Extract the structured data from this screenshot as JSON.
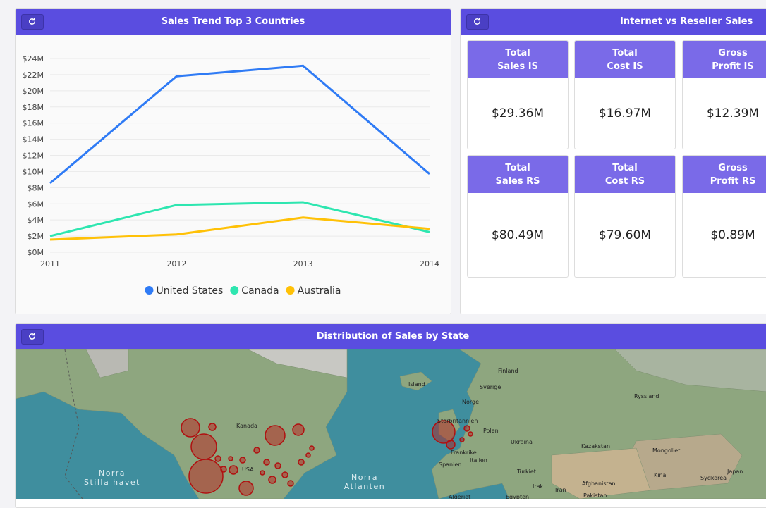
{
  "chart_data": {
    "type": "line",
    "title": "Sales Trend Top 3 Countries",
    "categories": [
      "2011",
      "2012",
      "2013",
      "2014"
    ],
    "series": [
      {
        "name": "United States",
        "color": "#2f7bf5",
        "values": [
          8550000,
          21800000,
          23100000,
          9700000
        ]
      },
      {
        "name": "Canada",
        "color": "#2ee6b0",
        "values": [
          2000000,
          5850000,
          6200000,
          2500000
        ]
      },
      {
        "name": "Australia",
        "color": "#ffc107",
        "values": [
          1570000,
          2200000,
          4300000,
          2900000
        ]
      }
    ],
    "ylim": [
      0,
      24000000
    ],
    "yticks": [
      {
        "value": 0,
        "label": "$0M"
      },
      {
        "value": 2000000,
        "label": "$2M"
      },
      {
        "value": 4000000,
        "label": "$4M"
      },
      {
        "value": 6000000,
        "label": "$6M"
      },
      {
        "value": 8000000,
        "label": "$8M"
      },
      {
        "value": 10000000,
        "label": "$10M"
      },
      {
        "value": 12000000,
        "label": "$12M"
      },
      {
        "value": 14000000,
        "label": "$14M"
      },
      {
        "value": 16000000,
        "label": "$16M"
      },
      {
        "value": 18000000,
        "label": "$18M"
      },
      {
        "value": 20000000,
        "label": "$20M"
      },
      {
        "value": 22000000,
        "label": "$22M"
      },
      {
        "value": 24000000,
        "label": "$24M"
      }
    ],
    "grid": true,
    "legend": "bottom"
  },
  "kpi_panel": {
    "title": "Internet vs Reseller Sales",
    "cards": [
      {
        "label": "Total\nSales IS",
        "value": "$29.36M"
      },
      {
        "label": "Total\nCost IS",
        "value": "$16.97M"
      },
      {
        "label": "Gross\nProfit IS",
        "value": "$12.39M"
      },
      {
        "label": "Total\nSales RS",
        "value": "$80.49M"
      },
      {
        "label": "Total\nCost RS",
        "value": "$79.60M"
      },
      {
        "label": "Gross\nProfit RS",
        "value": "$0.89M"
      }
    ]
  },
  "map_panel": {
    "title": "Distribution of Sales by State",
    "labels": [
      "Finland",
      "Island",
      "Sverige",
      "Norge",
      "Ryssland",
      "Storbritannien",
      "Polen",
      "Ukraina",
      "Kazakstan",
      "Mongoliet",
      "Frankrike",
      "Italien",
      "Spanien",
      "Turkiet",
      "Irak",
      "Iran",
      "Afghanistan",
      "Pakistan",
      "Kina",
      "Japan",
      "Sydkorea",
      "Algeriet",
      "Egypten",
      "Kanada",
      "USA",
      "Norra",
      "Stilla havet",
      "Norra",
      "Atlanten"
    ]
  }
}
